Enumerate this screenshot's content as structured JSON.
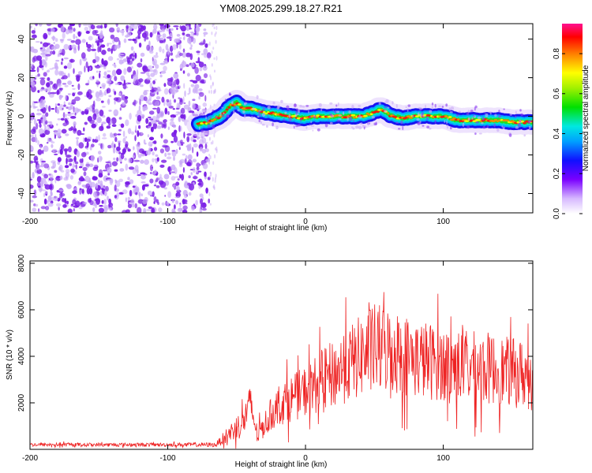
{
  "title": "YM08.2025.299.18.27.R21",
  "colors": {
    "snr_line": "#ee2222",
    "frame": "#000000",
    "speckle": "#7a1ee6",
    "speckle_light": "#c9aaf7"
  },
  "chart_data": [
    {
      "type": "heatmap",
      "xlabel": "Height of straight line (km)",
      "ylabel": "Frequency (Hz)",
      "xlim": [
        -200,
        165
      ],
      "ylim": [
        -50,
        48
      ],
      "x_ticks": [
        -200,
        -100,
        0,
        100
      ],
      "y_ticks": [
        -40,
        -20,
        0,
        20,
        40
      ],
      "noise_region_x": [
        -200,
        -70
      ],
      "signal_ridge": {
        "x": [
          -78,
          -70,
          -62,
          -55,
          -50,
          -45,
          -40,
          -30,
          -20,
          -10,
          0,
          10,
          20,
          30,
          40,
          50,
          55,
          60,
          70,
          80,
          90,
          100,
          110,
          120,
          130,
          140,
          150,
          160,
          165
        ],
        "freq": [
          -4,
          -3,
          0,
          5,
          7,
          4,
          4,
          2,
          1,
          0,
          -1,
          0,
          0,
          0,
          0,
          2,
          4,
          1,
          -1,
          0,
          0,
          0,
          -2,
          -2,
          -2,
          -2,
          -3,
          -3,
          -3
        ]
      },
      "colorbar": {
        "label": "Normalized spectral amplitude",
        "range": [
          0.0,
          0.95
        ],
        "ticks": [
          "0.0",
          "0.2",
          "0.4",
          "0.6",
          "0.8"
        ]
      }
    },
    {
      "type": "line",
      "xlabel": "Height of straight line (km)",
      "ylabel": "SNR (10 * v/v)",
      "xlim": [
        -200,
        165
      ],
      "ylim": [
        0,
        8100
      ],
      "x_ticks": [
        -200,
        -100,
        0,
        100
      ],
      "y_ticks": [
        2000,
        4000,
        6000,
        8000
      ],
      "envelope": {
        "x": [
          -200,
          -100,
          -65,
          -55,
          -45,
          -40,
          -35,
          -25,
          -20,
          -10,
          0,
          10,
          20,
          30,
          40,
          50,
          60,
          70,
          80,
          90,
          100,
          110,
          120,
          130,
          140,
          150,
          160,
          165
        ],
        "mean": [
          200,
          200,
          200,
          700,
          1200,
          2000,
          600,
          1500,
          1900,
          2200,
          2500,
          2900,
          3200,
          3600,
          4000,
          4300,
          4300,
          4100,
          3900,
          3800,
          3700,
          3600,
          3500,
          3500,
          3400,
          3300,
          3200,
          3100
        ],
        "amp": [
          80,
          80,
          100,
          400,
          700,
          800,
          400,
          700,
          900,
          1000,
          1100,
          1300,
          1500,
          1600,
          1800,
          2000,
          1900,
          1800,
          1700,
          1700,
          1600,
          1600,
          1600,
          1600,
          1500,
          1500,
          1500,
          1500
        ]
      }
    }
  ]
}
